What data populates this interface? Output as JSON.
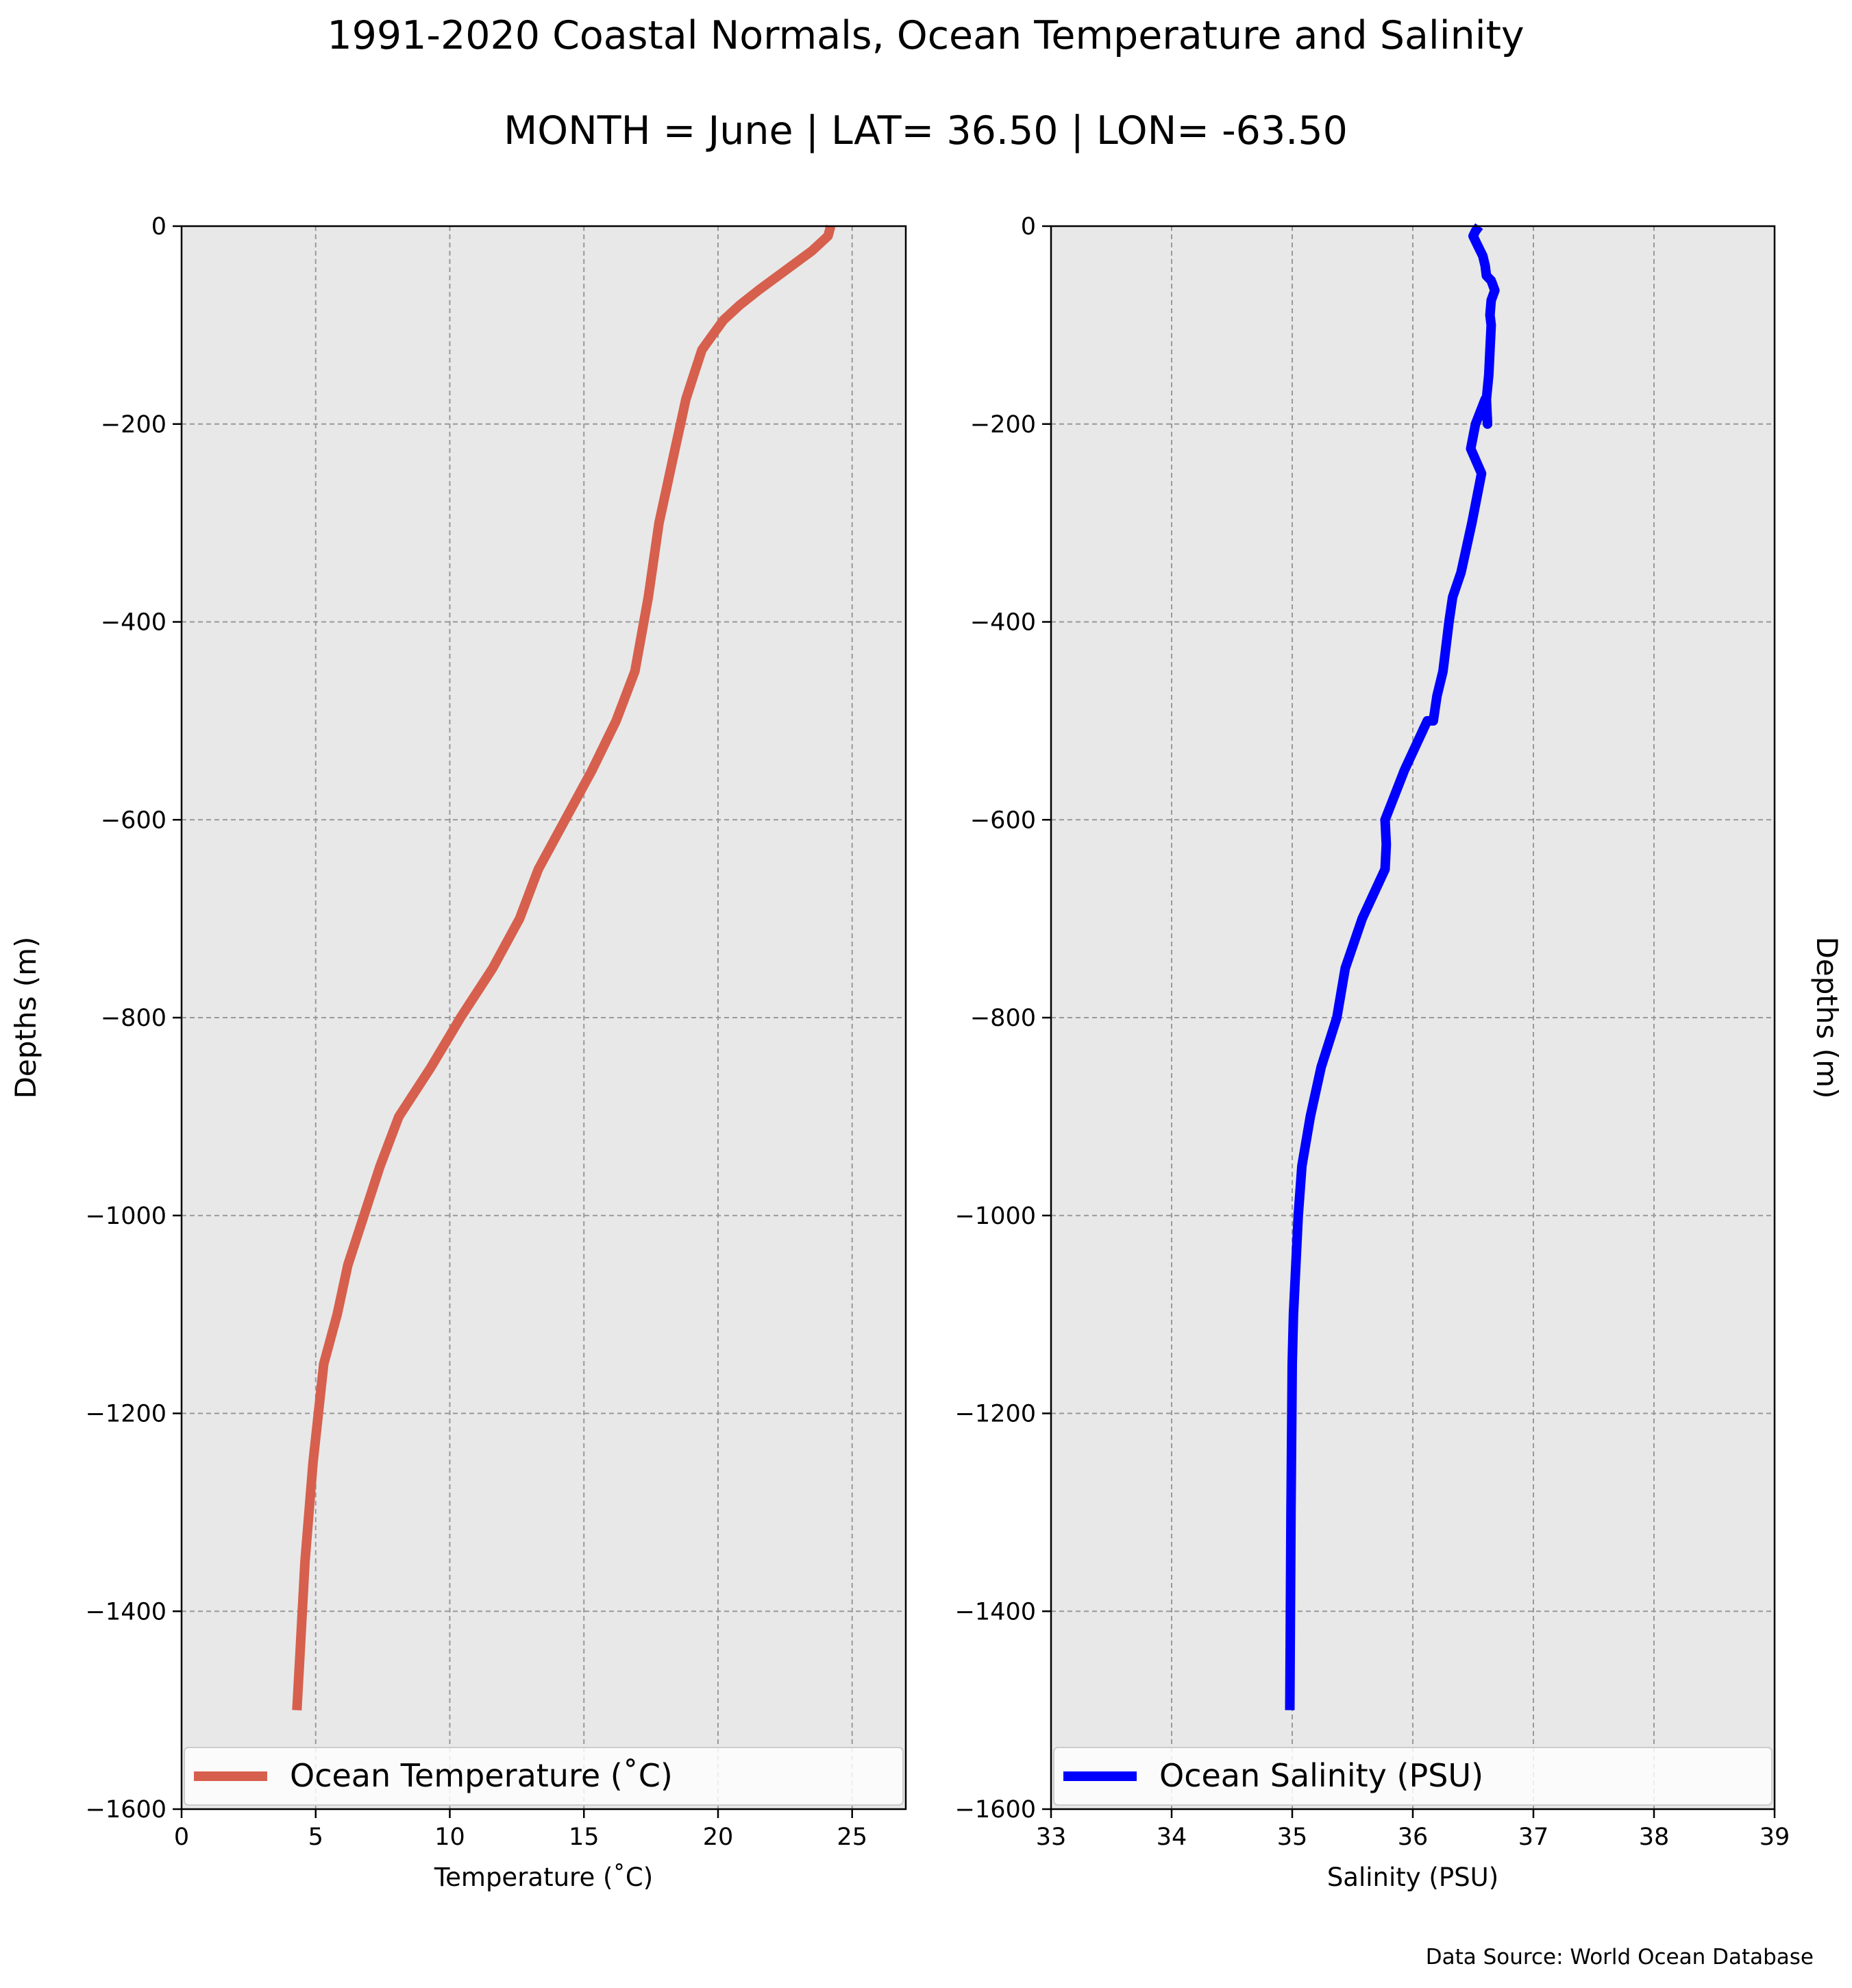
{
  "title": "1991-2020 Coastal Normals, Ocean Temperature and Salinity",
  "subtitle": "MONTH = June | LAT= 36.50 | LON= -63.50",
  "source": "Data Source: World Ocean Database",
  "colors": {
    "panel_bg": "#e8e8e8",
    "temperature": "#d6604d",
    "salinity": "#0000ff",
    "grid": "#999999"
  },
  "chart_data": [
    {
      "type": "line",
      "xlabel": "Temperature ($^\\circ$C)",
      "xlabel_display": "Temperature (˚C)",
      "ylabel": "Depths (m)",
      "xlim": [
        0,
        27
      ],
      "ylim": [
        -1600,
        0
      ],
      "xticks": [
        0,
        5,
        10,
        15,
        20,
        25
      ],
      "yticks": [
        0,
        -200,
        -400,
        -600,
        -800,
        -1000,
        -1200,
        -1400,
        -1600
      ],
      "ytick_labels": [
        "0",
        "−200",
        "−400",
        "−600",
        "−800",
        "−1000",
        "−1200",
        "−1400",
        "−1600"
      ],
      "grid": true,
      "legend_position": "lower-center",
      "series": [
        {
          "name": "Ocean Temperature (˚C)",
          "x": [
            24.2,
            24.1,
            23.5,
            22.5,
            21.5,
            20.8,
            20.2,
            19.8,
            19.4,
            19.1,
            18.8,
            18.6,
            18.4,
            18.2,
            18.0,
            17.8,
            17.4,
            16.9,
            16.2,
            15.3,
            14.3,
            13.3,
            12.6,
            11.6,
            10.4,
            9.3,
            8.1,
            7.4,
            6.8,
            6.2,
            5.8,
            5.3,
            4.9,
            4.6,
            4.4,
            4.3
          ],
          "y": [
            0,
            -10,
            -25,
            -45,
            -65,
            -80,
            -95,
            -110,
            -125,
            -150,
            -175,
            -200,
            -225,
            -250,
            -275,
            -300,
            -375,
            -450,
            -500,
            -550,
            -600,
            -650,
            -700,
            -750,
            -800,
            -850,
            -900,
            -950,
            -1000,
            -1050,
            -1100,
            -1150,
            -1250,
            -1350,
            -1450,
            -1500
          ]
        }
      ]
    },
    {
      "type": "line",
      "xlabel": "Salinity (PSU)",
      "ylabel": "Depths (m)",
      "xlim": [
        33,
        39
      ],
      "ylim": [
        -1600,
        0
      ],
      "xticks": [
        33,
        34,
        35,
        36,
        37,
        38,
        39
      ],
      "yticks": [
        0,
        -200,
        -400,
        -600,
        -800,
        -1000,
        -1200,
        -1400,
        -1600
      ],
      "ytick_labels": [
        "0",
        "−200",
        "−400",
        "−600",
        "−800",
        "−1000",
        "−1200",
        "−1400",
        "−1600"
      ],
      "grid": true,
      "legend_position": "lower-center",
      "series": [
        {
          "name": "Ocean Salinity (PSU)",
          "x": [
            36.55,
            36.52,
            36.5,
            36.54,
            36.58,
            36.6,
            36.61,
            36.65,
            36.68,
            36.65,
            36.64,
            36.65,
            36.64,
            36.63,
            36.61,
            36.62,
            36.6,
            36.52,
            36.48,
            36.57,
            36.49,
            36.4,
            36.33,
            36.3,
            36.25,
            36.2,
            36.17,
            36.12,
            36.12,
            35.93,
            35.77,
            35.78,
            35.77,
            35.58,
            35.44,
            35.37,
            35.24,
            35.15,
            35.08,
            35.05,
            35.03,
            35.01,
            35.0,
            34.99,
            34.98
          ],
          "y": [
            0,
            -5,
            -10,
            -20,
            -30,
            -40,
            -50,
            -55,
            -65,
            -75,
            -90,
            -100,
            -125,
            -150,
            -175,
            -200,
            -175,
            -200,
            -225,
            -250,
            -300,
            -350,
            -375,
            -400,
            -450,
            -475,
            -500,
            -500,
            -500,
            -550,
            -600,
            -625,
            -650,
            -700,
            -750,
            -800,
            -850,
            -900,
            -950,
            -1000,
            -1050,
            -1100,
            -1150,
            -1300,
            -1500
          ]
        }
      ]
    }
  ]
}
